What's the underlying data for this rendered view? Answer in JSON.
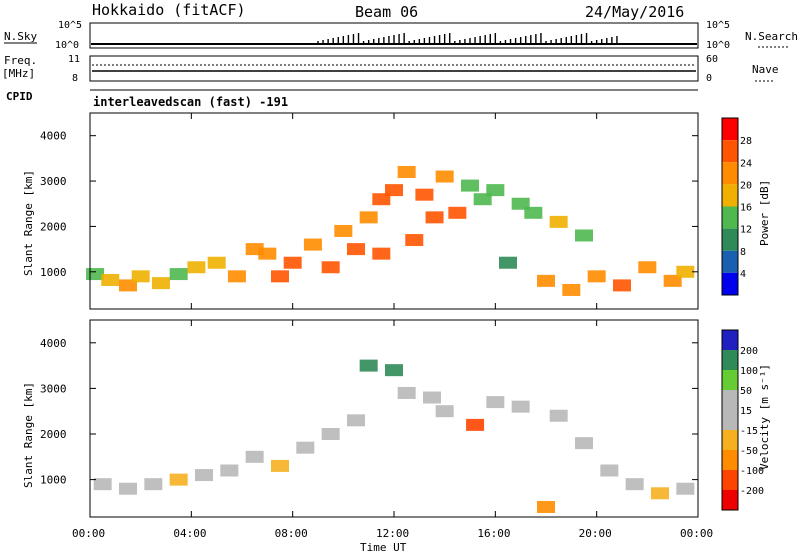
{
  "header": {
    "station": "Hokkaido (fitACF)",
    "beam": "Beam 06",
    "date": "24/May/2016"
  },
  "top_panels": {
    "nsky_label": "N.Sky",
    "nsky_axis": [
      "10^5",
      "10^0"
    ],
    "nsky_axis_right": [
      "10^5",
      "10^0"
    ],
    "nsearch_label": "N.Search",
    "freq_label": "Freq.",
    "freq_unit": "[MHz]",
    "freq_axis": [
      "11",
      "8"
    ],
    "nave_axis": [
      "60",
      "0"
    ],
    "nave_label": "Nave",
    "cpid_label": "CPID",
    "cpid_text": "interleavedscan (fast) -191"
  },
  "colors": {
    "power": [
      "#0000ee",
      "#1a5fb0",
      "#2e8b57",
      "#4fb84f",
      "#f0b000",
      "#ff8c00",
      "#ff5500",
      "#ff0000"
    ],
    "velocity": [
      "#2020c0",
      "#2e8b57",
      "#66cc33",
      "#b8b8b8",
      "#b8b8b8",
      "#f5b020",
      "#ff8c00",
      "#ff4400",
      "#ee0000"
    ]
  },
  "power_colorbar": {
    "title": "Power [dB]",
    "ticks": [
      "28",
      "24",
      "20",
      "16",
      "12",
      "8",
      "4"
    ]
  },
  "velocity_colorbar": {
    "title": "Velocity [m s⁻¹]",
    "ticks": [
      "200",
      "100",
      "50",
      "15",
      "-15",
      "-50",
      "-100",
      "-200"
    ]
  },
  "chart_data": [
    {
      "type": "heatmap",
      "title": "",
      "xlabel": "Time UT",
      "ylabel": "Slant Range [km]",
      "x_ticks": [
        "00:00",
        "04:00",
        "08:00",
        "12:00",
        "16:00",
        "20:00",
        "00:00"
      ],
      "y_ticks": [
        "4000",
        "3000",
        "2000",
        "1000"
      ],
      "xlim_hours": [
        0,
        24
      ],
      "ylim_km": [
        180,
        4500
      ],
      "colorbar": "Power [dB]",
      "cells": [
        [
          0.2,
          950,
          14
        ],
        [
          0.8,
          820,
          20
        ],
        [
          1.5,
          700,
          22
        ],
        [
          2.0,
          900,
          18
        ],
        [
          2.8,
          750,
          20
        ],
        [
          3.5,
          950,
          16
        ],
        [
          4.2,
          1100,
          18
        ],
        [
          5.0,
          1200,
          20
        ],
        [
          5.8,
          900,
          22
        ],
        [
          6.5,
          1500,
          22
        ],
        [
          7.0,
          1400,
          24
        ],
        [
          7.5,
          900,
          28
        ],
        [
          8.0,
          1200,
          26
        ],
        [
          8.8,
          1600,
          24
        ],
        [
          9.5,
          1100,
          28
        ],
        [
          10.0,
          1900,
          24
        ],
        [
          10.5,
          1500,
          26
        ],
        [
          11.0,
          2200,
          24
        ],
        [
          11.5,
          2600,
          26
        ],
        [
          11.5,
          1400,
          28
        ],
        [
          12.0,
          2800,
          28
        ],
        [
          12.5,
          3200,
          24
        ],
        [
          12.8,
          1700,
          28
        ],
        [
          13.2,
          2700,
          28
        ],
        [
          13.6,
          2200,
          26
        ],
        [
          14.0,
          3100,
          22
        ],
        [
          14.5,
          2300,
          28
        ],
        [
          15.0,
          2900,
          16
        ],
        [
          15.5,
          2600,
          14
        ],
        [
          16.0,
          2800,
          16
        ],
        [
          16.5,
          1200,
          12
        ],
        [
          17.0,
          2500,
          14
        ],
        [
          17.5,
          2300,
          16
        ],
        [
          18.0,
          800,
          24
        ],
        [
          18.5,
          2100,
          20
        ],
        [
          19.0,
          600,
          22
        ],
        [
          19.5,
          1800,
          16
        ],
        [
          20.0,
          900,
          22
        ],
        [
          21.0,
          700,
          26
        ],
        [
          22.0,
          1100,
          22
        ],
        [
          23.0,
          800,
          24
        ],
        [
          23.5,
          1000,
          20
        ]
      ]
    },
    {
      "type": "heatmap",
      "title": "",
      "xlabel": "Time UT",
      "ylabel": "Slant Range [km]",
      "x_ticks": [
        "00:00",
        "04:00",
        "08:00",
        "12:00",
        "16:00",
        "20:00",
        "00:00"
      ],
      "y_ticks": [
        "4000",
        "3000",
        "2000",
        "1000"
      ],
      "xlim_hours": [
        0,
        24
      ],
      "ylim_km": [
        180,
        4500
      ],
      "colorbar": "Velocity [m s⁻¹]",
      "cells": [
        [
          0.5,
          900,
          0
        ],
        [
          1.5,
          800,
          5
        ],
        [
          2.5,
          900,
          0
        ],
        [
          3.5,
          1000,
          -5
        ],
        [
          4.5,
          1100,
          0
        ],
        [
          5.5,
          1200,
          5
        ],
        [
          6.5,
          1500,
          0
        ],
        [
          7.5,
          1300,
          -5
        ],
        [
          8.5,
          1700,
          0
        ],
        [
          9.5,
          2000,
          5
        ],
        [
          10.5,
          2300,
          0
        ],
        [
          11.0,
          3500,
          150
        ],
        [
          12.0,
          3400,
          180
        ],
        [
          12.5,
          2900,
          40
        ],
        [
          13.5,
          2800,
          45
        ],
        [
          14.0,
          2500,
          10
        ],
        [
          15.2,
          2200,
          -60
        ],
        [
          16.0,
          2700,
          5
        ],
        [
          17.0,
          2600,
          30
        ],
        [
          18.5,
          2400,
          35
        ],
        [
          18.0,
          400,
          -40
        ],
        [
          19.5,
          1800,
          0
        ],
        [
          20.5,
          1200,
          5
        ],
        [
          21.5,
          900,
          0
        ],
        [
          22.5,
          700,
          -5
        ],
        [
          23.5,
          800,
          0
        ]
      ]
    }
  ]
}
